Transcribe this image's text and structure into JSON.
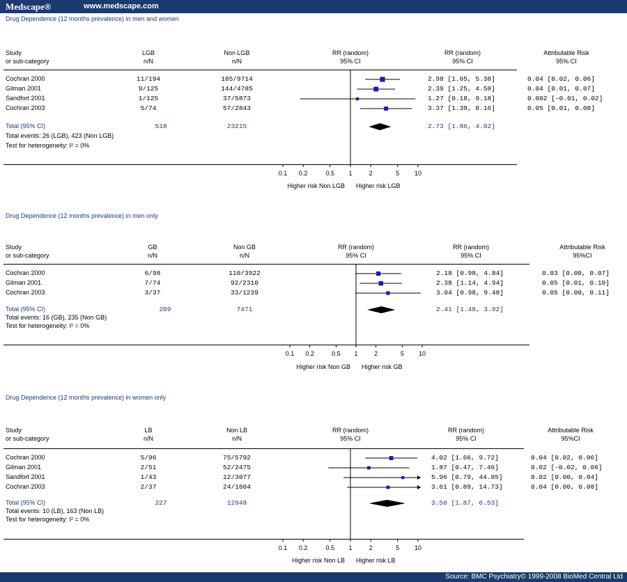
{
  "header": {
    "brand": "Medscape®",
    "url": "www.medscape.com"
  },
  "footer": {
    "source": "Source: BMC Psychiatry© 1999-2008 BioMed Central Ltd"
  },
  "common": {
    "study_h1": "Study",
    "study_h2": "or sub-category",
    "nn": "n/N",
    "rr_h": "RR (random)",
    "ci_h": "95% CI",
    "total_label": "Total (95% CI)",
    "heterogeneity": "Test for heterogeneity:  I² = 0%",
    "axis_ticks": [
      "0.1",
      "0.2",
      "0.5",
      "1",
      "2",
      "5",
      "10"
    ]
  },
  "chart_data": [
    {
      "type": "forest",
      "title": "Drug Dependence (12 months prevalence) in men and women",
      "group1": "LGB",
      "group2": "Non LGB",
      "ar_header": "Attributable Risk",
      "ar_ci": "95% CI",
      "left_label": "Higher risk Non LGB",
      "right_label": "Higher risk LGB",
      "studies": [
        {
          "name": "Cochran 2000",
          "g1": "11/194",
          "g2": "185/9714",
          "rr": 2.98,
          "lo": 1.65,
          "hi": 5.38,
          "rr_text": "2.98 [1.65, 5.38]",
          "ar": "0.04  [0.02, 0.06]"
        },
        {
          "name": "Gilman 2001",
          "g1": "9/125",
          "g2": "144/4785",
          "rr": 2.39,
          "lo": 1.25,
          "hi": 4.58,
          "rr_text": "2.39 [1.25, 4.58]",
          "ar": "0.04  [0.01, 0.07]"
        },
        {
          "name": "Sandfort 2001",
          "g1": "1/125",
          "g2": "37/5873",
          "rr": 1.27,
          "lo": 0.18,
          "hi": 9.18,
          "rr_text": "1.27 [0.18, 9.18]",
          "ar": "0.002 [-0.01, 0.02]"
        },
        {
          "name": "Cochran 2003",
          "g1": "5/74",
          "g2": "57/2843",
          "rr": 3.37,
          "lo": 1.39,
          "hi": 8.16,
          "rr_text": "3.37 [1.39, 8.16]",
          "ar": "0.05  [0.01, 0.08]"
        }
      ],
      "total": {
        "g1": "518",
        "g2": "23215",
        "rr": 2.73,
        "lo": 1.86,
        "hi": 4.02,
        "rr_text": "2.73 [1.86, 4.02]"
      },
      "events": "Total events: 26 (LGB), 423 (Non LGB)"
    },
    {
      "type": "forest",
      "title": "Drug Dependence (12 months prevalence) in men only",
      "group1": "GB",
      "group2": "Non GB",
      "ar_header": "Attributable Risk",
      "ar_ci": "95%CI",
      "left_label": "Higher risk Non GB",
      "right_label": "Higher risk GB",
      "studies": [
        {
          "name": "Cochran 2000",
          "g1": "6/98",
          "g2": "110/3922",
          "rr": 2.18,
          "lo": 0.98,
          "hi": 4.84,
          "rr_text": "2.18 [0.98, 4.84]",
          "ar": "0.03 [0.00, 0.07]"
        },
        {
          "name": "Gilman 2001",
          "g1": "7/74",
          "g2": "92/2310",
          "rr": 2.38,
          "lo": 1.14,
          "hi": 4.94,
          "rr_text": "2.38 [1.14, 4.94]",
          "ar": "0.05 [0.01, 0.10]"
        },
        {
          "name": "Cochran 2003",
          "g1": "3/37",
          "g2": "33/1239",
          "rr": 3.04,
          "lo": 0.98,
          "hi": 9.48,
          "rr_text": "3.04 [0.98, 9.48]",
          "ar": "0.05 [0.00, 0.11]"
        }
      ],
      "total": {
        "g1": "209",
        "g2": "7471",
        "rr": 2.41,
        "lo": 1.48,
        "hi": 3.92,
        "rr_text": "2.41 [1.48, 3.92]"
      },
      "events": "Total events: 16 (GB), 235 (Non GB)"
    },
    {
      "type": "forest",
      "title": "Drug Dependence (12 months prevalence) in women only",
      "group1": "LB",
      "group2": "Non LB",
      "ar_header": "Attributable Risk",
      "ar_ci": "95%CI",
      "left_label": "Higher risk Non LB",
      "right_label": "Higher risk LB",
      "studies": [
        {
          "name": "Cochran 2000",
          "g1": "5/96",
          "g2": "75/5792",
          "rr": 4.02,
          "lo": 1.66,
          "hi": 9.72,
          "rr_text": "4.02 [1.66, 9.72]",
          "ar": "0.04 [0.02, 0.06]"
        },
        {
          "name": "Gilman 2001",
          "g1": "2/51",
          "g2": "52/2475",
          "rr": 1.87,
          "lo": 0.47,
          "hi": 7.46,
          "rr_text": "1.87 [0.47, 7.46]",
          "ar": "0.02 [-0.02, 0.06]"
        },
        {
          "name": "Sandfort 2001",
          "g1": "1/43",
          "g2": "12/3077",
          "rr": 5.96,
          "lo": 0.79,
          "hi": 44.85,
          "rr_text": "5.96 [0.79, 44.85]",
          "ar": "0.02 [0.00, 0.04]"
        },
        {
          "name": "Cochran 2003",
          "g1": "2/37",
          "g2": "24/1604",
          "rr": 3.61,
          "lo": 0.89,
          "hi": 14.73,
          "rr_text": "3.61 [0.89, 14.73]",
          "ar": "0.04 [0.00, 0.08]"
        }
      ],
      "total": {
        "g1": "227",
        "g2": "12948",
        "rr": 3.5,
        "lo": 1.87,
        "hi": 6.53,
        "rr_text": "3.50 [1.87, 6.53]"
      },
      "events": "Total events: 10 (LB), 163 (Non LB)"
    }
  ]
}
